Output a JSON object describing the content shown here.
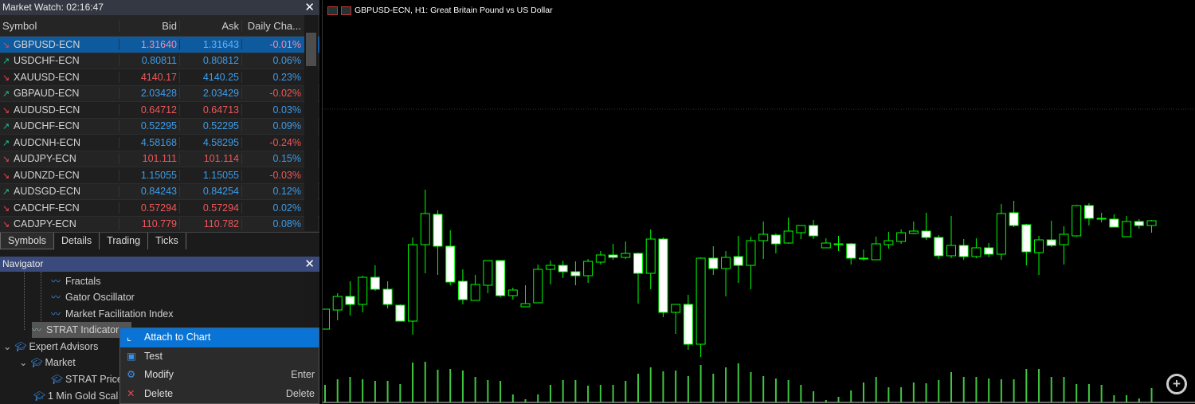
{
  "market_watch": {
    "title": "Market Watch: 02:16:47",
    "columns": [
      "Symbol",
      "Bid",
      "Ask",
      "Daily Cha..."
    ],
    "rows": [
      {
        "symbol": "GBPUSD-ECN",
        "dir": "down",
        "bid": "1.31640",
        "ask": "1.31643",
        "change": "-0.01%",
        "bid_c": "red",
        "ask_c": "blue",
        "chg_c": "red",
        "selected": true
      },
      {
        "symbol": "USDCHF-ECN",
        "dir": "up",
        "bid": "0.80811",
        "ask": "0.80812",
        "change": "0.06%",
        "bid_c": "blue",
        "ask_c": "blue",
        "chg_c": "blue"
      },
      {
        "symbol": "XAUUSD-ECN",
        "dir": "down",
        "bid": "4140.17",
        "ask": "4140.25",
        "change": "0.23%",
        "bid_c": "red",
        "ask_c": "blue",
        "chg_c": "blue"
      },
      {
        "symbol": "GBPAUD-ECN",
        "dir": "up",
        "bid": "2.03428",
        "ask": "2.03429",
        "change": "-0.02%",
        "bid_c": "blue",
        "ask_c": "blue",
        "chg_c": "red"
      },
      {
        "symbol": "AUDUSD-ECN",
        "dir": "down",
        "bid": "0.64712",
        "ask": "0.64713",
        "change": "0.03%",
        "bid_c": "red",
        "ask_c": "red",
        "chg_c": "blue"
      },
      {
        "symbol": "AUDCHF-ECN",
        "dir": "up",
        "bid": "0.52295",
        "ask": "0.52295",
        "change": "0.09%",
        "bid_c": "blue",
        "ask_c": "blue",
        "chg_c": "blue"
      },
      {
        "symbol": "AUDCNH-ECN",
        "dir": "up",
        "bid": "4.58168",
        "ask": "4.58295",
        "change": "-0.24%",
        "bid_c": "blue",
        "ask_c": "blue",
        "chg_c": "red"
      },
      {
        "symbol": "AUDJPY-ECN",
        "dir": "down",
        "bid": "101.111",
        "ask": "101.114",
        "change": "0.15%",
        "bid_c": "red",
        "ask_c": "red",
        "chg_c": "blue"
      },
      {
        "symbol": "AUDNZD-ECN",
        "dir": "down",
        "bid": "1.15055",
        "ask": "1.15055",
        "change": "-0.03%",
        "bid_c": "blue",
        "ask_c": "blue",
        "chg_c": "red"
      },
      {
        "symbol": "AUDSGD-ECN",
        "dir": "up",
        "bid": "0.84243",
        "ask": "0.84254",
        "change": "0.12%",
        "bid_c": "blue",
        "ask_c": "blue",
        "chg_c": "blue"
      },
      {
        "symbol": "CADCHF-ECN",
        "dir": "down",
        "bid": "0.57294",
        "ask": "0.57294",
        "change": "0.02%",
        "bid_c": "red",
        "ask_c": "red",
        "chg_c": "blue"
      },
      {
        "symbol": "CADJPY-ECN",
        "dir": "down",
        "bid": "110.779",
        "ask": "110.782",
        "change": "0.08%",
        "bid_c": "red",
        "ask_c": "red",
        "chg_c": "blue"
      }
    ],
    "tabs": [
      "Symbols",
      "Details",
      "Trading",
      "Ticks"
    ],
    "active_tab": "Symbols"
  },
  "navigator": {
    "title": "Navigator",
    "items": [
      "Fractals",
      "Gator Oscillator",
      "Market Facilitation Index",
      "STRAT Indicator",
      "Expert Advisors",
      "Market",
      "STRAT Price",
      "1 Min Gold Scal"
    ]
  },
  "context_menu": {
    "items": [
      {
        "label": "Attach to Chart",
        "shortcut": "",
        "icon": "chart-line-icon"
      },
      {
        "label": "Test",
        "shortcut": "",
        "icon": "chip-icon"
      },
      {
        "label": "Modify",
        "shortcut": "Enter",
        "icon": "gear-icon"
      },
      {
        "label": "Delete",
        "shortcut": "Delete",
        "icon": "close-x-icon"
      }
    ]
  },
  "chart": {
    "title": "GBPUSD-ECN, H1:  Great Britain Pound vs US Dollar",
    "candle_color": "#00ff00",
    "bear_fill": "#ffffff",
    "background": "#000000"
  }
}
